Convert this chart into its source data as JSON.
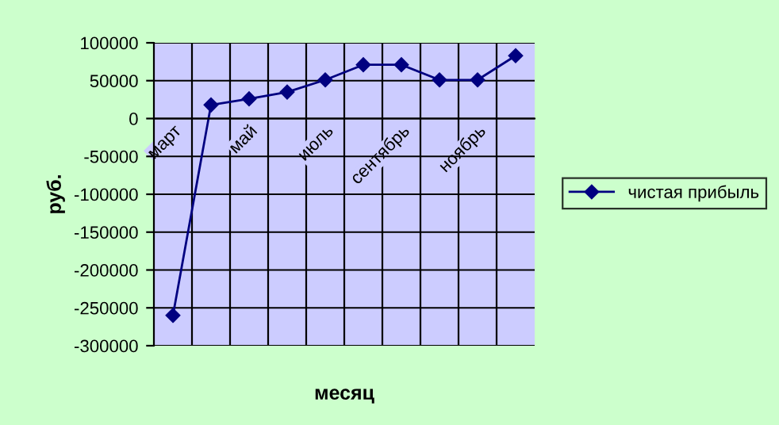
{
  "chart_data": {
    "type": "line",
    "xlabel": "месяц",
    "ylabel": "руб.",
    "categories": [
      "март",
      null,
      "май",
      null,
      "июль",
      null,
      "сентябрь",
      null,
      "ноябрь",
      null
    ],
    "series": [
      {
        "name": "чистая прибыль",
        "color": "#000080",
        "values": [
          -260000,
          18000,
          26000,
          35000,
          51000,
          71000,
          71000,
          51000,
          51000,
          83000
        ]
      }
    ],
    "ylim": [
      -300000,
      100000
    ],
    "yticks": [
      -300000,
      -250000,
      -200000,
      -150000,
      -100000,
      -50000,
      0,
      50000,
      100000
    ],
    "grid": true,
    "legend": "right",
    "marker": "diamond",
    "line_style": "solid"
  }
}
